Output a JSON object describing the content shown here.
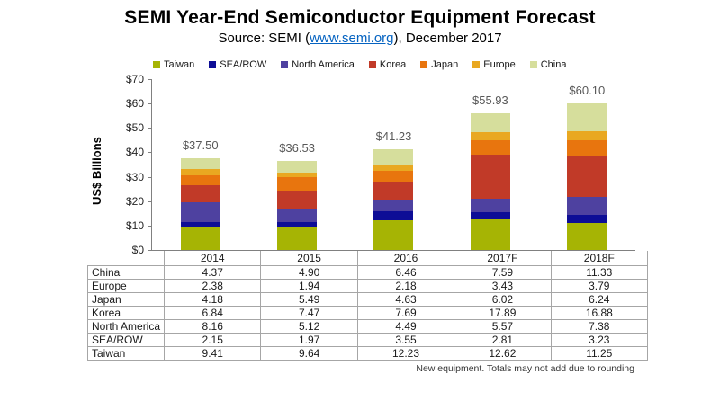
{
  "header": {
    "title": "SEMI Year-End Semiconductor Equipment Forecast",
    "subtitle_prefix": "Source: SEMI (",
    "subtitle_link": "www.semi.org",
    "subtitle_suffix": "), December 2017"
  },
  "chart_data": {
    "type": "bar",
    "stacked": true,
    "title": "SEMI Year-End Semiconductor Equipment Forecast",
    "categories": [
      "2014",
      "2015",
      "2016",
      "2017F",
      "2018F"
    ],
    "series": [
      {
        "name": "Taiwan",
        "color": "#A6B404",
        "values": [
          9.41,
          9.64,
          12.23,
          12.62,
          11.25
        ]
      },
      {
        "name": "SEA/ROW",
        "color": "#0D0D96",
        "values": [
          2.15,
          1.97,
          3.55,
          2.81,
          3.23
        ]
      },
      {
        "name": "North America",
        "color": "#4E41A0",
        "values": [
          8.16,
          5.12,
          4.49,
          5.57,
          7.38
        ]
      },
      {
        "name": "Korea",
        "color": "#C13A28",
        "values": [
          6.84,
          7.47,
          7.69,
          17.89,
          16.88
        ]
      },
      {
        "name": "Japan",
        "color": "#E8750E",
        "values": [
          4.18,
          5.49,
          4.63,
          6.02,
          6.24
        ]
      },
      {
        "name": "Europe",
        "color": "#E9A821",
        "values": [
          2.38,
          1.94,
          2.18,
          3.43,
          3.79
        ]
      },
      {
        "name": "China",
        "color": "#D6DE9C",
        "values": [
          4.37,
          4.9,
          6.46,
          7.59,
          11.33
        ]
      }
    ],
    "totals": [
      "$37.50",
      "$36.53",
      "$41.23",
      "$55.93",
      "$60.10"
    ],
    "ylabel": "US$ Billions",
    "ylim": [
      0,
      70
    ],
    "y_ticks": [
      "$0",
      "$10",
      "$20",
      "$30",
      "$40",
      "$50",
      "$60",
      "$70"
    ],
    "grid": false,
    "legend_position": "top"
  },
  "table": {
    "col_headers": [
      "",
      "2014",
      "2015",
      "2016",
      "2017F",
      "2018F"
    ],
    "rows": [
      {
        "label": "China",
        "values": [
          "4.37",
          "4.90",
          "6.46",
          "7.59",
          "11.33"
        ]
      },
      {
        "label": "Europe",
        "values": [
          "2.38",
          "1.94",
          "2.18",
          "3.43",
          "3.79"
        ]
      },
      {
        "label": "Japan",
        "values": [
          "4.18",
          "5.49",
          "4.63",
          "6.02",
          "6.24"
        ]
      },
      {
        "label": "Korea",
        "values": [
          "6.84",
          "7.47",
          "7.69",
          "17.89",
          "16.88"
        ]
      },
      {
        "label": "North America",
        "values": [
          "8.16",
          "5.12",
          "4.49",
          "5.57",
          "7.38"
        ]
      },
      {
        "label": "SEA/ROW",
        "values": [
          "2.15",
          "1.97",
          "3.55",
          "2.81",
          "3.23"
        ]
      },
      {
        "label": "Taiwan",
        "values": [
          "9.41",
          "9.64",
          "12.23",
          "12.62",
          "11.25"
        ]
      }
    ]
  },
  "footnote": "New equipment. Totals may not add due to rounding",
  "colors": {
    "axis_line": "#808080",
    "table_border": "#A6A6A6",
    "total_label": "#595959",
    "link": "#0563C1"
  }
}
